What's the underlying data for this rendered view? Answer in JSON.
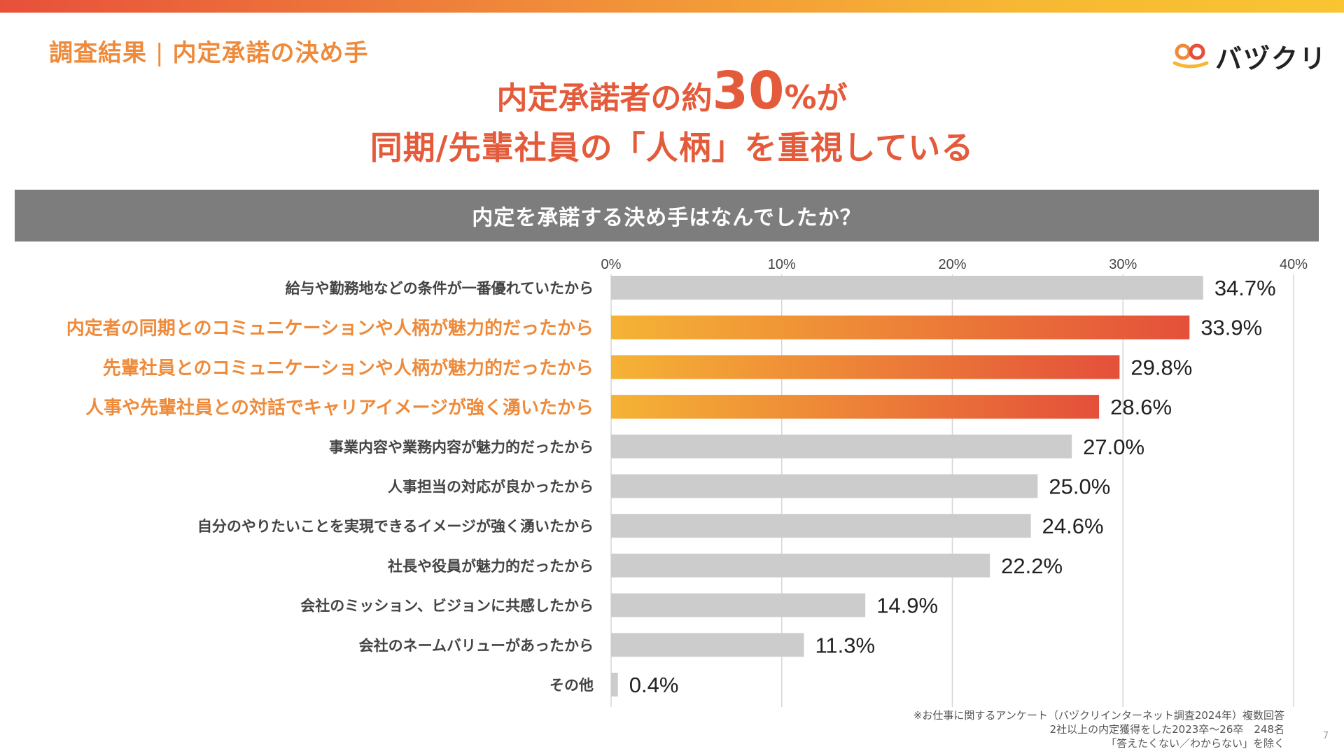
{
  "section_label": {
    "main": "調査結果",
    "separator": "|",
    "sub": "内定承諾の決め手"
  },
  "logo": {
    "text": "バヅクリ"
  },
  "headline": {
    "line1_pre": "内定承諾者の約",
    "line1_number": "30",
    "line1_unit": "%",
    "line1_post": "が",
    "line2": "同期/先輩社員の「人柄」を重視している"
  },
  "question": "内定を承諾する決め手はなんでしたか？",
  "colors": {
    "accent": "#e45b3b",
    "label_orange": "#ee8a3a",
    "gray_bar": "#cccccc",
    "highlight_start": "#f5b335",
    "highlight_end": "#e4503a",
    "question_bg": "#7d7d7d"
  },
  "chart_data": {
    "type": "bar",
    "orientation": "horizontal",
    "title": "内定を承諾する決め手はなんでしたか？",
    "xlim": [
      0,
      40
    ],
    "x_ticks": [
      0,
      10,
      20,
      30,
      40
    ],
    "x_tick_labels": [
      "0%",
      "10%",
      "20%",
      "30%",
      "40%"
    ],
    "gridlines": true,
    "categories": [
      "給与や勤務地などの条件が一番優れていたから",
      "内定者の同期とのコミュニケーションや人柄が魅力的だったから",
      "先輩社員とのコミュニケーションや人柄が魅力的だったから",
      "人事や先輩社員との対話でキャリアイメージが強く湧いたから",
      "事業内容や業務内容が魅力的だったから",
      "人事担当の対応が良かったから",
      "自分のやりたいことを実現できるイメージが強く湧いたから",
      "社長や役員が魅力的だったから",
      "会社のミッション、ビジョンに共感したから",
      "会社のネームバリューがあったから",
      "その他"
    ],
    "values": [
      34.7,
      33.9,
      29.8,
      28.6,
      27.0,
      25.0,
      24.6,
      22.2,
      14.9,
      11.3,
      0.4
    ],
    "value_labels": [
      "34.7%",
      "33.9%",
      "29.8%",
      "28.6%",
      "27.0%",
      "25.0%",
      "24.6%",
      "22.2%",
      "14.9%",
      "11.3%",
      "0.4%"
    ],
    "highlighted": [
      false,
      true,
      true,
      true,
      false,
      false,
      false,
      false,
      false,
      false,
      false
    ]
  },
  "footnote": {
    "line1": "※お仕事に関するアンケート（バヅクリインターネット調査2024年）複数回答",
    "line2": "2社以上の内定獲得をした2023卒〜26卒　248名",
    "line3": "「答えたくない／わからない」を除く"
  },
  "page_number": "7"
}
